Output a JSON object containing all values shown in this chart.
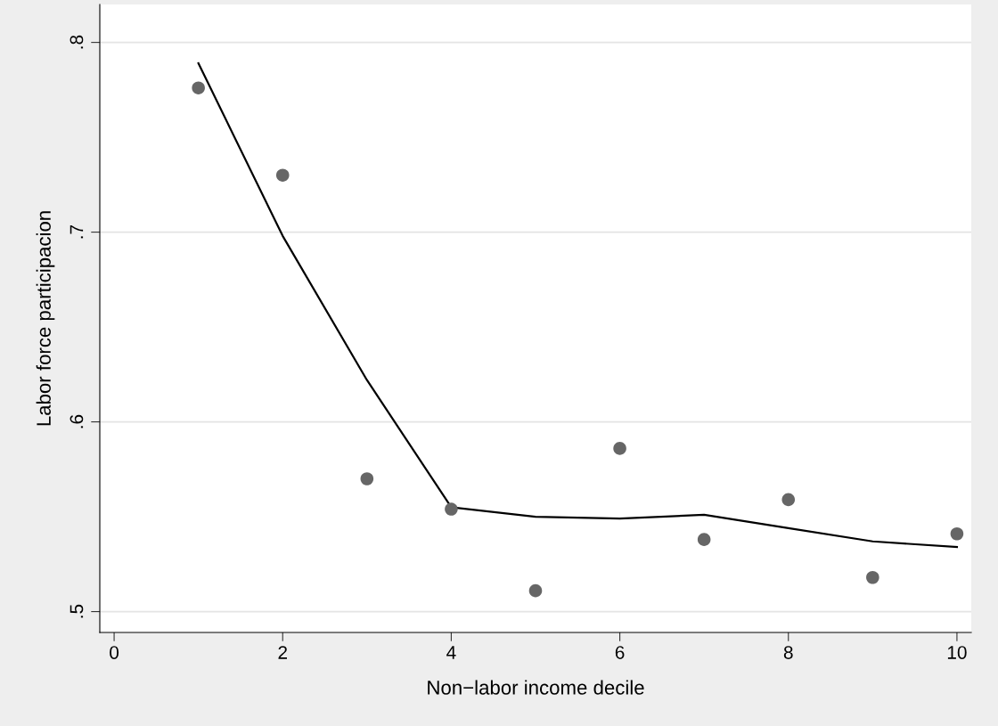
{
  "chart_data": {
    "type": "scatter",
    "xlabel": "Non−labor income decile",
    "ylabel": "Labor force participacion",
    "x": [
      1,
      2,
      3,
      4,
      5,
      6,
      7,
      8,
      9,
      10
    ],
    "series": [
      {
        "color": "#666666",
        "marker": "circle",
        "values": [
          0.776,
          0.73,
          0.57,
          0.554,
          0.511,
          0.586,
          0.538,
          0.559,
          0.518,
          0.541
        ]
      },
      {
        "type": "line",
        "color": "#000000",
        "marker": "none",
        "line_style": "solid",
        "values": [
          0.789,
          0.698,
          0.622,
          0.555,
          0.55,
          0.549,
          0.551,
          0.544,
          0.537,
          0.534
        ]
      }
    ],
    "xlim": [
      -0.17,
      10.17
    ],
    "xticks": [
      0,
      2,
      4,
      6,
      8,
      10
    ],
    "ylim": [
      0.489,
      0.82
    ],
    "yticks": [
      {
        "value": 0.5,
        "label": ".5"
      },
      {
        "value": 0.6,
        "label": ".6"
      },
      {
        "value": 0.7,
        "label": ".7"
      },
      {
        "value": 0.8,
        "label": ".8"
      }
    ],
    "grid": "y",
    "legend": false
  }
}
